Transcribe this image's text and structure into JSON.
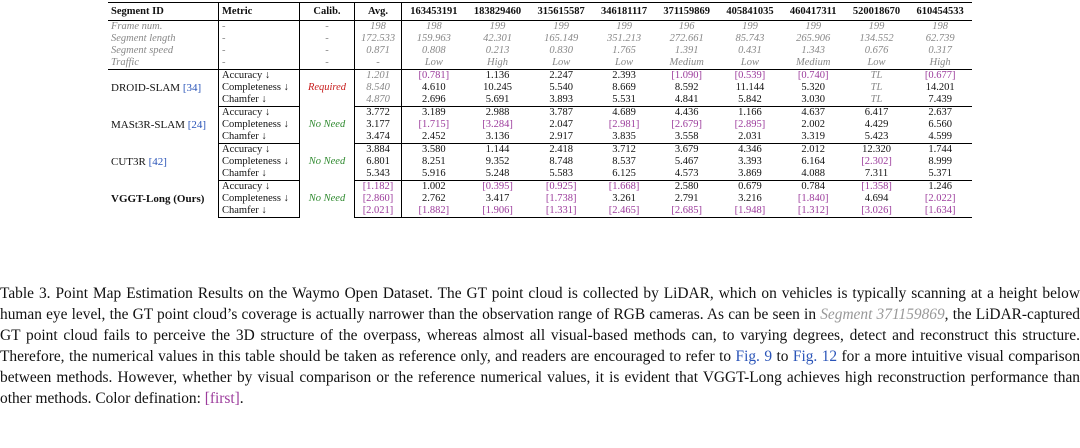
{
  "table": {
    "headers": [
      "Segment ID",
      "Metric",
      "Calib.",
      "Avg.",
      "163453191",
      "183829460",
      "315615587",
      "346181117",
      "371159869",
      "405841035",
      "460417311",
      "520018670",
      "610454533"
    ],
    "info_rows": [
      {
        "label": "Frame num.",
        "metric": "-",
        "calib": "-",
        "avg": "198",
        "values": [
          "198",
          "199",
          "199",
          "199",
          "196",
          "199",
          "199",
          "199",
          "198"
        ]
      },
      {
        "label": "Segment length",
        "metric": "-",
        "calib": "-",
        "avg": "172.533",
        "values": [
          "159.963",
          "42.301",
          "165.149",
          "351.213",
          "272.661",
          "85.743",
          "265.906",
          "134.552",
          "62.739"
        ]
      },
      {
        "label": "Segment speed",
        "metric": "-",
        "calib": "-",
        "avg": "0.871",
        "values": [
          "0.808",
          "0.213",
          "0.830",
          "1.765",
          "1.391",
          "0.431",
          "1.343",
          "0.676",
          "0.317"
        ]
      },
      {
        "label": "Traffic",
        "metric": "-",
        "calib": "-",
        "avg": "-",
        "values": [
          "Low",
          "High",
          "Low",
          "Low",
          "Medium",
          "Low",
          "Medium",
          "Low",
          "High"
        ]
      }
    ],
    "methods": [
      {
        "name": "DROID-SLAM",
        "cite": "[34]",
        "calib": "Required",
        "calib_style": "req",
        "ours": false,
        "rows": [
          {
            "metric": "Accuracy ↓",
            "avg": "1.201",
            "avg_style": "muted",
            "cells": [
              {
                "v": "[0.781]",
                "s": "first"
              },
              {
                "v": "1.136",
                "s": ""
              },
              {
                "v": "2.247",
                "s": ""
              },
              {
                "v": "2.393",
                "s": ""
              },
              {
                "v": "[1.090]",
                "s": "first"
              },
              {
                "v": "[0.539]",
                "s": "first"
              },
              {
                "v": "[0.740]",
                "s": "first"
              },
              {
                "v": "TL",
                "s": "muted"
              },
              {
                "v": "[0.677]",
                "s": "first"
              }
            ]
          },
          {
            "metric": "Completeness ↓",
            "avg": "8.540",
            "avg_style": "muted",
            "cells": [
              {
                "v": "4.610",
                "s": ""
              },
              {
                "v": "10.245",
                "s": ""
              },
              {
                "v": "5.540",
                "s": ""
              },
              {
                "v": "8.669",
                "s": ""
              },
              {
                "v": "8.592",
                "s": ""
              },
              {
                "v": "11.144",
                "s": ""
              },
              {
                "v": "5.320",
                "s": ""
              },
              {
                "v": "TL",
                "s": "muted"
              },
              {
                "v": "14.201",
                "s": ""
              }
            ]
          },
          {
            "metric": "Chamfer ↓",
            "avg": "4.870",
            "avg_style": "muted",
            "cells": [
              {
                "v": "2.696",
                "s": ""
              },
              {
                "v": "5.691",
                "s": ""
              },
              {
                "v": "3.893",
                "s": ""
              },
              {
                "v": "5.531",
                "s": ""
              },
              {
                "v": "4.841",
                "s": ""
              },
              {
                "v": "5.842",
                "s": ""
              },
              {
                "v": "3.030",
                "s": ""
              },
              {
                "v": "TL",
                "s": "muted"
              },
              {
                "v": "7.439",
                "s": ""
              }
            ]
          }
        ]
      },
      {
        "name": "MASt3R-SLAM",
        "cite": "[24]",
        "calib": "No Need",
        "calib_style": "nn",
        "ours": false,
        "rows": [
          {
            "metric": "Accuracy ↓",
            "avg": "3.772",
            "avg_style": "",
            "cells": [
              {
                "v": "3.189",
                "s": ""
              },
              {
                "v": "2.988",
                "s": ""
              },
              {
                "v": "3.787",
                "s": ""
              },
              {
                "v": "4.689",
                "s": ""
              },
              {
                "v": "4.436",
                "s": ""
              },
              {
                "v": "1.166",
                "s": ""
              },
              {
                "v": "4.637",
                "s": ""
              },
              {
                "v": "6.417",
                "s": ""
              },
              {
                "v": "2.637",
                "s": ""
              }
            ]
          },
          {
            "metric": "Completeness ↓",
            "avg": "3.177",
            "avg_style": "",
            "cells": [
              {
                "v": "[1.715]",
                "s": "first"
              },
              {
                "v": "[3.284]",
                "s": "first"
              },
              {
                "v": "2.047",
                "s": ""
              },
              {
                "v": "[2.981]",
                "s": "first"
              },
              {
                "v": "[2.679]",
                "s": "first"
              },
              {
                "v": "[2.895]",
                "s": "first"
              },
              {
                "v": "2.002",
                "s": ""
              },
              {
                "v": "4.429",
                "s": ""
              },
              {
                "v": "6.560",
                "s": ""
              }
            ]
          },
          {
            "metric": "Chamfer ↓",
            "avg": "3.474",
            "avg_style": "",
            "cells": [
              {
                "v": "2.452",
                "s": ""
              },
              {
                "v": "3.136",
                "s": ""
              },
              {
                "v": "2.917",
                "s": ""
              },
              {
                "v": "3.835",
                "s": ""
              },
              {
                "v": "3.558",
                "s": ""
              },
              {
                "v": "2.031",
                "s": ""
              },
              {
                "v": "3.319",
                "s": ""
              },
              {
                "v": "5.423",
                "s": ""
              },
              {
                "v": "4.599",
                "s": ""
              }
            ]
          }
        ]
      },
      {
        "name": "CUT3R",
        "cite": "[42]",
        "calib": "No Need",
        "calib_style": "nn",
        "ours": false,
        "rows": [
          {
            "metric": "Accuracy ↓",
            "avg": "3.884",
            "avg_style": "",
            "cells": [
              {
                "v": "3.580",
                "s": ""
              },
              {
                "v": "1.144",
                "s": ""
              },
              {
                "v": "2.418",
                "s": ""
              },
              {
                "v": "3.712",
                "s": ""
              },
              {
                "v": "3.679",
                "s": ""
              },
              {
                "v": "4.346",
                "s": ""
              },
              {
                "v": "2.012",
                "s": ""
              },
              {
                "v": "12.320",
                "s": ""
              },
              {
                "v": "1.744",
                "s": ""
              }
            ]
          },
          {
            "metric": "Completeness ↓",
            "avg": "6.801",
            "avg_style": "",
            "cells": [
              {
                "v": "8.251",
                "s": ""
              },
              {
                "v": "9.352",
                "s": ""
              },
              {
                "v": "8.748",
                "s": ""
              },
              {
                "v": "8.537",
                "s": ""
              },
              {
                "v": "5.467",
                "s": ""
              },
              {
                "v": "3.393",
                "s": ""
              },
              {
                "v": "6.164",
                "s": ""
              },
              {
                "v": "[2.302]",
                "s": "first"
              },
              {
                "v": "8.999",
                "s": ""
              }
            ]
          },
          {
            "metric": "Chamfer ↓",
            "avg": "5.343",
            "avg_style": "",
            "cells": [
              {
                "v": "5.916",
                "s": ""
              },
              {
                "v": "5.248",
                "s": ""
              },
              {
                "v": "5.583",
                "s": ""
              },
              {
                "v": "6.125",
                "s": ""
              },
              {
                "v": "4.573",
                "s": ""
              },
              {
                "v": "3.869",
                "s": ""
              },
              {
                "v": "4.088",
                "s": ""
              },
              {
                "v": "7.311",
                "s": ""
              },
              {
                "v": "5.371",
                "s": ""
              }
            ]
          }
        ]
      },
      {
        "name": "VGGT-Long (Ours)",
        "cite": "",
        "calib": "No Need",
        "calib_style": "nn",
        "ours": true,
        "rows": [
          {
            "metric": "Accuracy ↓",
            "avg": "[1.182]",
            "avg_style": "first",
            "cells": [
              {
                "v": "1.002",
                "s": ""
              },
              {
                "v": "[0.395]",
                "s": "first"
              },
              {
                "v": "[0.925]",
                "s": "first"
              },
              {
                "v": "[1.668]",
                "s": "first"
              },
              {
                "v": "2.580",
                "s": ""
              },
              {
                "v": "0.679",
                "s": ""
              },
              {
                "v": "0.784",
                "s": ""
              },
              {
                "v": "[1.358]",
                "s": "first"
              },
              {
                "v": "1.246",
                "s": ""
              }
            ]
          },
          {
            "metric": "Completeness ↓",
            "avg": "[2.860]",
            "avg_style": "first",
            "cells": [
              {
                "v": "2.762",
                "s": ""
              },
              {
                "v": "3.417",
                "s": ""
              },
              {
                "v": "[1.738]",
                "s": "first"
              },
              {
                "v": "3.261",
                "s": ""
              },
              {
                "v": "2.791",
                "s": ""
              },
              {
                "v": "3.216",
                "s": ""
              },
              {
                "v": "[1.840]",
                "s": "first"
              },
              {
                "v": "4.694",
                "s": ""
              },
              {
                "v": "[2.022]",
                "s": "first"
              }
            ]
          },
          {
            "metric": "Chamfer ↓",
            "avg": "[2.021]",
            "avg_style": "first",
            "cells": [
              {
                "v": "[1.882]",
                "s": "first"
              },
              {
                "v": "[1.906]",
                "s": "first"
              },
              {
                "v": "[1.331]",
                "s": "first"
              },
              {
                "v": "[2.465]",
                "s": "first"
              },
              {
                "v": "[2.685]",
                "s": "first"
              },
              {
                "v": "[1.948]",
                "s": "first"
              },
              {
                "v": "[1.312]",
                "s": "first"
              },
              {
                "v": "[3.026]",
                "s": "first"
              },
              {
                "v": "[1.634]",
                "s": "first"
              }
            ]
          }
        ]
      }
    ]
  },
  "caption": {
    "p1": "Table 3. Point Map Estimation Results on the Waymo Open Dataset. The GT point cloud is collected by LiDAR, which on vehicles is typically scanning at a height below human eye level, the GT point cloud’s coverage is actually narrower than the observation range of RGB cameras. As can be seen in ",
    "seg_ref": "Segment 371159869",
    "p2": ", the LiDAR-captured GT point cloud fails to perceive the 3D structure of the overpass, whereas almost all visual-based methods can, to varying degrees, detect and reconstruct this structure. Therefore, the numerical values in this table should be taken as reference only, and readers are encouraged to refer to ",
    "fig9": "Fig. 9",
    "p3": " to ",
    "fig12": "Fig. 12",
    "p4": " for a more intuitive visual comparison between methods. However, whether by visual comparison or the reference numerical values, it is evident that VGGT-Long achieves high reconstruction performance than other methods. Color defination: ",
    "first_label": "[first]",
    "p5": "."
  }
}
